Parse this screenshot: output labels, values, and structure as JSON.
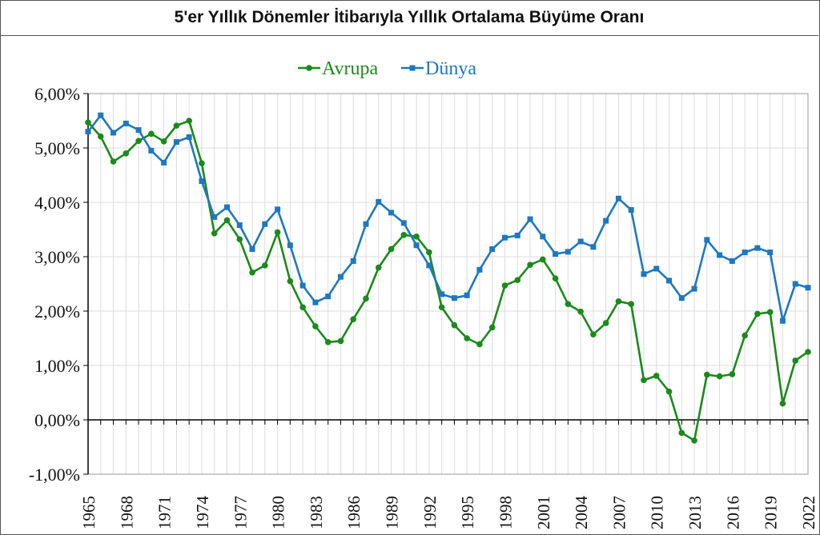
{
  "chart_data": {
    "type": "line",
    "title": "5'er Yıllık Dönemler İtibarıyla Yıllık Ortalama Büyüme Oranı",
    "xlabel": "",
    "ylabel": "",
    "ylim": [
      -1,
      6
    ],
    "y_ticks": [
      "-1,00%",
      "0,00%",
      "1,00%",
      "2,00%",
      "3,00%",
      "4,00%",
      "5,00%",
      "6,00%"
    ],
    "x_ticks": [
      "1965",
      "1968",
      "1971",
      "1974",
      "1977",
      "1980",
      "1983",
      "1986",
      "1989",
      "1992",
      "1995",
      "1998",
      "2001",
      "2004",
      "2007",
      "2010",
      "2013",
      "2016",
      "2019",
      "2022"
    ],
    "x": [
      1965,
      1966,
      1967,
      1968,
      1969,
      1970,
      1971,
      1972,
      1973,
      1974,
      1975,
      1976,
      1977,
      1978,
      1979,
      1980,
      1981,
      1982,
      1983,
      1984,
      1985,
      1986,
      1987,
      1988,
      1989,
      1990,
      1991,
      1992,
      1993,
      1994,
      1995,
      1996,
      1997,
      1998,
      1999,
      2000,
      2001,
      2002,
      2003,
      2004,
      2005,
      2006,
      2007,
      2008,
      2009,
      2010,
      2011,
      2012,
      2013,
      2014,
      2015,
      2016,
      2017,
      2018,
      2019,
      2020,
      2021,
      2022
    ],
    "grid": true,
    "legend_position": "top-center",
    "series": [
      {
        "name": "Avrupa",
        "color": "#1a8a1a",
        "marker": "circle",
        "values": [
          5.47,
          5.21,
          4.75,
          4.9,
          5.13,
          5.26,
          5.12,
          5.41,
          5.5,
          4.72,
          3.43,
          3.67,
          3.32,
          2.71,
          2.84,
          3.45,
          2.55,
          2.07,
          1.72,
          1.43,
          1.45,
          1.85,
          2.23,
          2.8,
          3.14,
          3.4,
          3.37,
          3.08,
          2.07,
          1.74,
          1.5,
          1.39,
          1.7,
          2.47,
          2.57,
          2.85,
          2.95,
          2.6,
          2.13,
          1.99,
          1.57,
          1.78,
          2.18,
          2.13,
          0.73,
          0.81,
          0.52,
          -0.24,
          -0.38,
          0.83,
          0.8,
          0.84,
          1.55,
          1.95,
          1.98,
          0.3,
          1.09,
          1.25
        ]
      },
      {
        "name": "Dünya",
        "color": "#1e78c0",
        "marker": "square",
        "values": [
          5.3,
          5.6,
          5.28,
          5.45,
          5.33,
          4.95,
          4.73,
          5.11,
          5.2,
          4.39,
          3.73,
          3.91,
          3.58,
          3.14,
          3.6,
          3.87,
          3.21,
          2.47,
          2.16,
          2.27,
          2.63,
          2.92,
          3.6,
          4.01,
          3.81,
          3.62,
          3.21,
          2.84,
          2.31,
          2.24,
          2.29,
          2.76,
          3.14,
          3.35,
          3.39,
          3.69,
          3.37,
          3.05,
          3.09,
          3.28,
          3.18,
          3.66,
          4.07,
          3.86,
          2.68,
          2.78,
          2.56,
          2.24,
          2.41,
          3.31,
          3.03,
          2.92,
          3.08,
          3.16,
          3.08,
          1.82,
          2.5,
          2.43
        ]
      }
    ]
  }
}
